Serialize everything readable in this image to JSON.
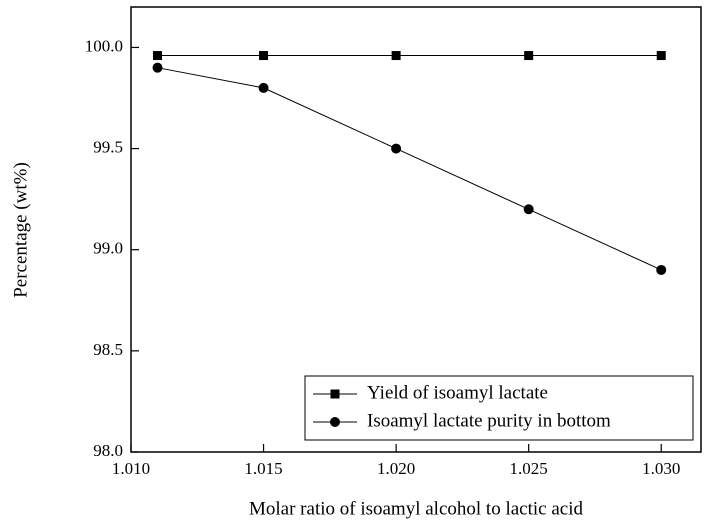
{
  "chart_data": {
    "type": "line",
    "x_label": "Molar ratio of isoamyl alcohol to lactic acid",
    "y_label": "Percentage (wt%)",
    "x": [
      1.011,
      1.015,
      1.02,
      1.025,
      1.03
    ],
    "series": [
      {
        "name": "Yield of isoamyl lactate",
        "color": "#000000",
        "marker": "square",
        "values": [
          99.96,
          99.96,
          99.96,
          99.96,
          99.96
        ]
      },
      {
        "name": "Isoamyl lactate purity in bottom",
        "color": "#000000",
        "marker": "circle",
        "values": [
          99.9,
          99.8,
          99.5,
          99.2,
          98.9
        ]
      }
    ],
    "xlim": [
      1.01,
      1.0315
    ],
    "xticks": [
      {
        "value": 1.01,
        "label": "1.010"
      },
      1.015,
      {
        "value": 1.02,
        "label": "1.020"
      },
      1.025,
      {
        "value": 1.03,
        "label": "1.030"
      }
    ],
    "ylim": [
      98.0,
      100.2
    ],
    "yticks": [
      {
        "value": 98.0,
        "label": "98.0"
      },
      98.5,
      {
        "value": 99.0,
        "label": "99.0"
      },
      99.5,
      {
        "value": 100.0,
        "label": "100.0"
      }
    ],
    "legend": "lower right",
    "grid": false
  }
}
